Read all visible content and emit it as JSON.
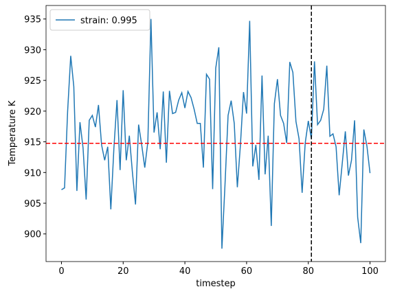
{
  "chart_data": {
    "type": "line",
    "xlabel": "timestep",
    "ylabel": "Temperature K",
    "x": [
      0,
      1,
      2,
      3,
      4,
      5,
      6,
      7,
      8,
      9,
      10,
      11,
      12,
      13,
      14,
      15,
      16,
      17,
      18,
      19,
      20,
      21,
      22,
      23,
      24,
      25,
      26,
      27,
      28,
      29,
      30,
      31,
      32,
      33,
      34,
      35,
      36,
      37,
      38,
      39,
      40,
      41,
      42,
      43,
      44,
      45,
      46,
      47,
      48,
      49,
      50,
      51,
      52,
      53,
      54,
      55,
      56,
      57,
      58,
      59,
      60,
      61,
      62,
      63,
      64,
      65,
      66,
      67,
      68,
      69,
      70,
      71,
      72,
      73,
      74,
      75,
      76,
      77,
      78,
      79,
      80,
      81,
      82,
      83,
      84,
      85,
      86,
      87,
      88,
      89,
      90,
      91,
      92,
      93,
      94,
      95,
      96,
      97,
      98,
      99,
      100
    ],
    "series": [
      {
        "name": "strain: 0.995",
        "color": "#1f77b4",
        "values": [
          907.2,
          907.5,
          920,
          929,
          924,
          907,
          918.2,
          914,
          905.6,
          918.5,
          919.3,
          917.4,
          921,
          914.5,
          912,
          914.2,
          904,
          914,
          921.8,
          910.4,
          923.4,
          912,
          916,
          910,
          904.8,
          917.8,
          914.5,
          910.8,
          915,
          935,
          916.5,
          919.8,
          913.8,
          923.2,
          911.6,
          923.3,
          919.6,
          919.8,
          921.8,
          923,
          920.5,
          923.2,
          922.2,
          920.3,
          918,
          918,
          910.8,
          926,
          925.2,
          907.3,
          927,
          930.4,
          897.6,
          908,
          919.3,
          921.7,
          918,
          907.6,
          914.5,
          923.1,
          919.6,
          934.7,
          911,
          914.5,
          908.8,
          925.8,
          909.7,
          916,
          901.3,
          921.2,
          925.2,
          919.3,
          918,
          914.8,
          928,
          926.3,
          918.3,
          915.5,
          906.7,
          914.8,
          918.4,
          915.5,
          928.1,
          917.8,
          918.5,
          920.3,
          927.4,
          915.9,
          916.3,
          914.2,
          906.3,
          911.5,
          916.7,
          909.5,
          912,
          918.5,
          902.7,
          898.5,
          917,
          914.3,
          909.9
        ]
      }
    ],
    "hline": {
      "value": 914.76,
      "color": "#ff0000"
    },
    "vline": {
      "value": 81,
      "color": "#000000"
    },
    "xlim": [
      -5,
      105
    ],
    "xticks": [
      0,
      20,
      40,
      60,
      80,
      100
    ],
    "ylim": [
      895.5,
      937.2
    ],
    "yticks": [
      900,
      905,
      910,
      915,
      920,
      925,
      930,
      935
    ],
    "legend": "upper left"
  }
}
